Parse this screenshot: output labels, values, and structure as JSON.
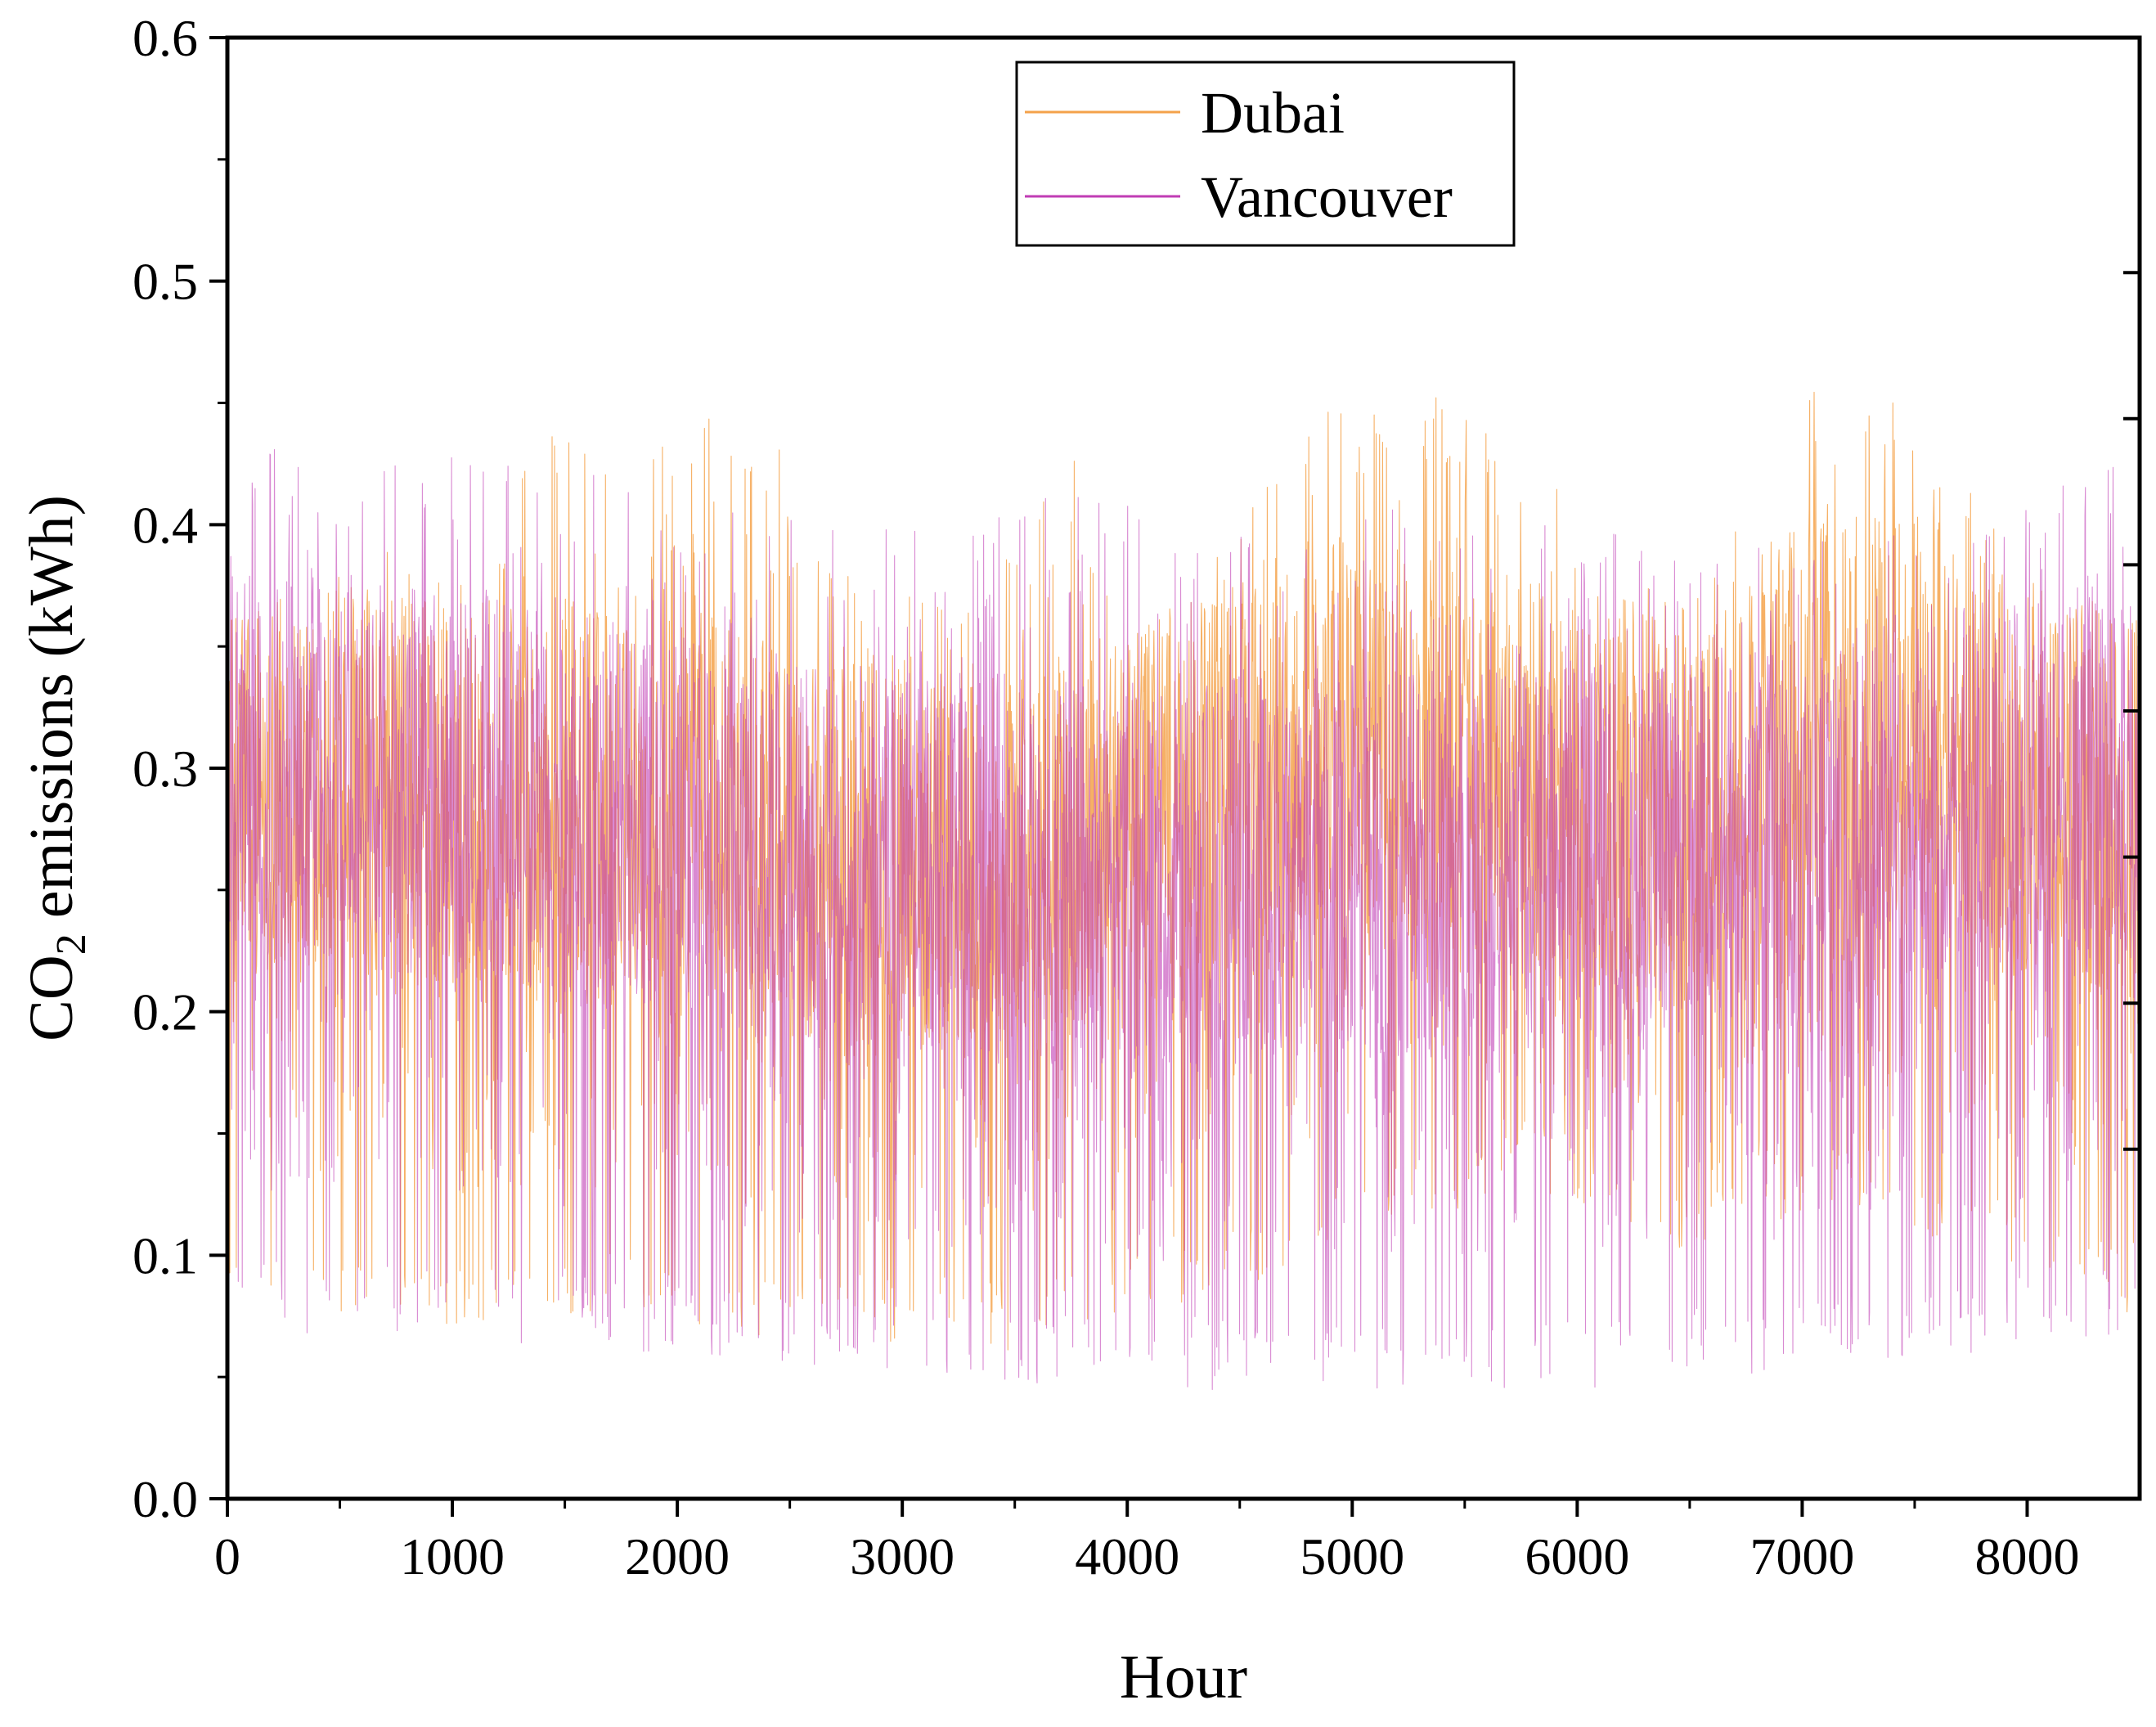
{
  "chart_data": {
    "type": "line",
    "title": "",
    "xlabel": "Hour",
    "ylabel_main": "CO",
    "ylabel_sub": "2",
    "ylabel_rest": " emissions (kWh)",
    "xlim": [
      0,
      8500
    ],
    "ylim": [
      0.0,
      0.6
    ],
    "x_ticks": [
      0,
      1000,
      2000,
      3000,
      4000,
      5000,
      6000,
      7000,
      8000
    ],
    "x_tick_labels": [
      "0",
      "1000",
      "2000",
      "3000",
      "4000",
      "5000",
      "6000",
      "7000",
      "8000"
    ],
    "y_ticks": [
      0.0,
      0.1,
      0.2,
      0.3,
      0.4,
      0.5,
      0.6
    ],
    "y_tick_labels": [
      "0.0",
      "0.1",
      "0.2",
      "0.3",
      "0.4",
      "0.5",
      "0.6"
    ],
    "grid": false,
    "legend_position": "top-center",
    "series": [
      {
        "name": "Dubai",
        "color": "#f4a24a",
        "sample_step_hours": 250,
        "envelope_min": [
          0.07,
          0.08,
          0.075,
          0.072,
          0.07,
          0.073,
          0.074,
          0.07,
          0.065,
          0.062,
          0.06,
          0.065,
          0.06,
          0.065,
          0.06,
          0.07,
          0.075,
          0.08,
          0.085,
          0.09,
          0.1,
          0.11,
          0.12,
          0.13,
          0.12,
          0.11,
          0.1,
          0.12,
          0.11,
          0.12,
          0.11,
          0.1,
          0.09,
          0.08,
          0.075
        ],
        "envelope_max": [
          0.36,
          0.37,
          0.38,
          0.4,
          0.39,
          0.41,
          0.46,
          0.42,
          0.44,
          0.45,
          0.43,
          0.38,
          0.38,
          0.37,
          0.39,
          0.44,
          0.36,
          0.38,
          0.41,
          0.44,
          0.47,
          0.46,
          0.45,
          0.44,
          0.4,
          0.39,
          0.38,
          0.42,
          0.47,
          0.45,
          0.46,
          0.42,
          0.38,
          0.37,
          0.36
        ],
        "band_center": [
          0.29,
          0.3,
          0.3,
          0.29,
          0.29,
          0.29,
          0.29,
          0.28,
          0.3,
          0.28,
          0.27,
          0.26,
          0.27,
          0.26,
          0.26,
          0.27,
          0.28,
          0.29,
          0.3,
          0.3,
          0.32,
          0.31,
          0.3,
          0.3,
          0.29,
          0.29,
          0.29,
          0.3,
          0.33,
          0.32,
          0.33,
          0.31,
          0.3,
          0.29,
          0.29
        ]
      },
      {
        "name": "Vancouver",
        "color": "#c03cb4",
        "sample_step_hours": 250,
        "envelope_min": [
          0.07,
          0.068,
          0.067,
          0.066,
          0.065,
          0.064,
          0.063,
          0.06,
          0.058,
          0.055,
          0.052,
          0.05,
          0.05,
          0.048,
          0.047,
          0.046,
          0.045,
          0.045,
          0.044,
          0.044,
          0.044,
          0.044,
          0.045,
          0.045,
          0.045,
          0.046,
          0.048,
          0.05,
          0.052,
          0.055,
          0.058,
          0.06,
          0.063,
          0.065,
          0.067
        ],
        "envelope_max": [
          0.43,
          0.432,
          0.43,
          0.428,
          0.428,
          0.425,
          0.423,
          0.418,
          0.414,
          0.41,
          0.406,
          0.402,
          0.398,
          0.4,
          0.41,
          0.42,
          0.41,
          0.405,
          0.4,
          0.39,
          0.4,
          0.41,
          0.405,
          0.4,
          0.4,
          0.395,
          0.39,
          0.39,
          0.395,
          0.4,
          0.405,
          0.41,
          0.415,
          0.42,
          0.428
        ],
        "band_center": [
          0.3,
          0.3,
          0.3,
          0.295,
          0.29,
          0.29,
          0.285,
          0.28,
          0.275,
          0.27,
          0.265,
          0.265,
          0.26,
          0.26,
          0.26,
          0.255,
          0.255,
          0.255,
          0.26,
          0.26,
          0.26,
          0.26,
          0.26,
          0.26,
          0.265,
          0.265,
          0.27,
          0.27,
          0.275,
          0.28,
          0.285,
          0.29,
          0.29,
          0.295,
          0.3
        ]
      }
    ]
  }
}
